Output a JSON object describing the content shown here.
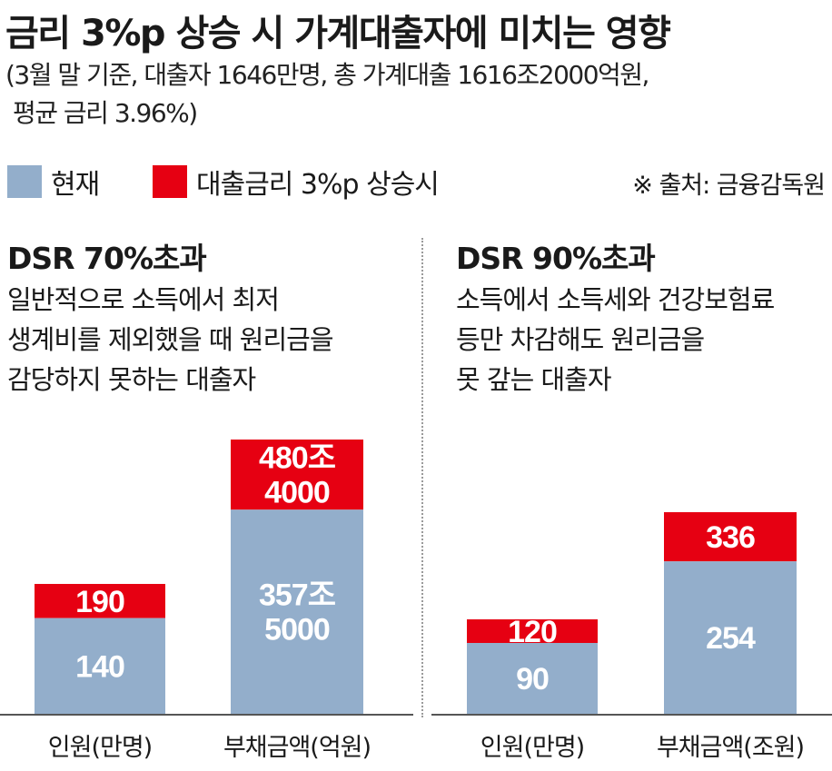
{
  "title": "금리 3%p 상승 시 가계대출자에 미치는 영향",
  "subtitle_line1": "(3월 말 기준, 대출자 1646만명, 총 가계대출 1616조2000억원,",
  "subtitle_line2": "평균 금리 3.96%)",
  "legend": {
    "current": "현재",
    "rate_up": "대출금리 3%p 상승시"
  },
  "source": "※ 출처: 금융감독원",
  "colors": {
    "current": "#93aecb",
    "rate_up": "#e60012",
    "axis": "#555555"
  },
  "panels": [
    {
      "title": "DSR 70%초과",
      "desc": [
        "일반적으로 소득에서 최저",
        "생계비를 제외했을 때 원리금을",
        "감당하지 못하는 대출자"
      ]
    },
    {
      "title": "DSR 90%초과",
      "desc": [
        "소득에서 소득세와 건강보험료",
        "등만 차감해도 원리금을",
        "못 갚는 대출자"
      ]
    }
  ],
  "chart_data": [
    {
      "type": "bar",
      "stacked": true,
      "categories": [
        "인원(만명)",
        "부채금액(억원)"
      ],
      "series": [
        {
          "name": "현재",
          "values": [
            140,
            3575000
          ],
          "labels": [
            "140",
            "357조\n5000"
          ]
        },
        {
          "name": "대출금리 3%p 상승시",
          "values": [
            190,
            4804000
          ],
          "labels": [
            "190",
            "480조\n4000"
          ]
        }
      ]
    },
    {
      "type": "bar",
      "stacked": true,
      "categories": [
        "인원(만명)",
        "부채금액(조원)"
      ],
      "series": [
        {
          "name": "현재",
          "values": [
            90,
            254
          ],
          "labels": [
            "90",
            "254"
          ]
        },
        {
          "name": "대출금리 3%p 상승시",
          "values": [
            120,
            336
          ],
          "labels": [
            "120",
            "336"
          ]
        }
      ]
    }
  ]
}
